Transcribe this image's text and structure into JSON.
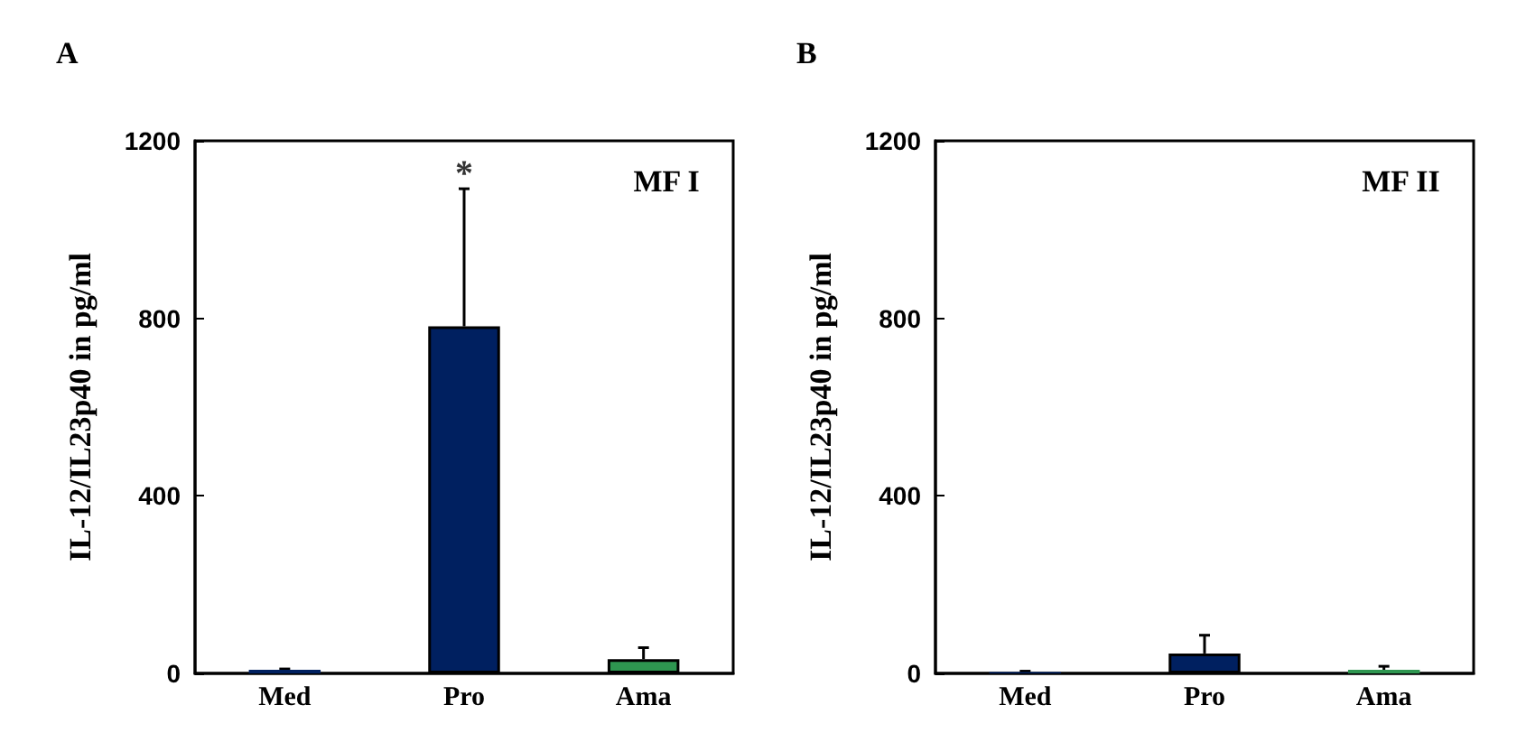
{
  "chart_data": [
    {
      "type": "bar",
      "title": "A",
      "ylabel": "IL-12/IL23p40 in pg/ml",
      "categories": [
        "Med",
        "Pro",
        "Ama"
      ],
      "values": [
        8,
        782,
        32
      ],
      "errors": [
        [
          8,
          10
        ],
        [
          782,
          1092
        ],
        [
          32,
          58
        ]
      ],
      "colors": [
        "#002060",
        "#002060",
        "#2e9650"
      ],
      "ylim": [
        0,
        1200
      ],
      "yticks": [
        0,
        400,
        800,
        1200
      ],
      "grid": false,
      "annotations": [
        "MF I",
        {
          "text": "*",
          "x": "Pro",
          "y": 1092
        }
      ]
    },
    {
      "type": "bar",
      "title": "B",
      "ylabel": "IL-12/IL23p40 in pg/ml",
      "categories": [
        "Med",
        "Pro",
        "Ama"
      ],
      "values": [
        3,
        45,
        8
      ],
      "errors": [
        [
          3,
          5
        ],
        [
          45,
          86
        ],
        [
          8,
          16
        ]
      ],
      "colors": [
        "#002060",
        "#002060",
        "#2e9650"
      ],
      "ylim": [
        0,
        1200
      ],
      "yticks": [
        0,
        400,
        800,
        1200
      ],
      "grid": false,
      "annotations": [
        "MF II"
      ]
    }
  ]
}
